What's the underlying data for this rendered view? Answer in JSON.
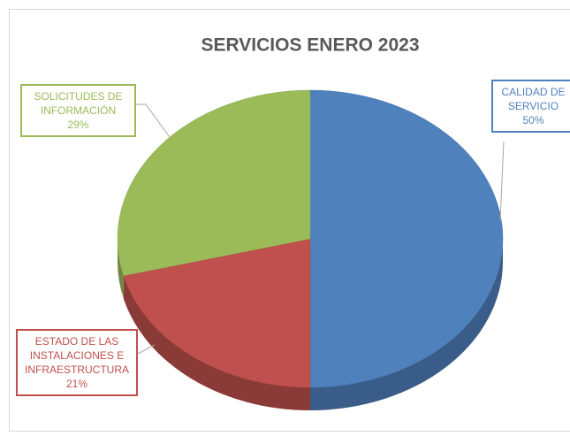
{
  "chart_data": {
    "type": "pie",
    "title": "SERVICIOS ENERO 2023",
    "categories": [
      "CALIDAD DE SERVICIO",
      "ESTADO DE LAS INSTALACIONES E INFRAESTRUCTURA",
      "SOLICITUDES DE INFORMACIÓN"
    ],
    "values": [
      50,
      21,
      29
    ],
    "value_labels": [
      "50%",
      "21%",
      "29%"
    ],
    "colors": [
      "#4f81bd",
      "#c0504d",
      "#9bbb59"
    ]
  }
}
